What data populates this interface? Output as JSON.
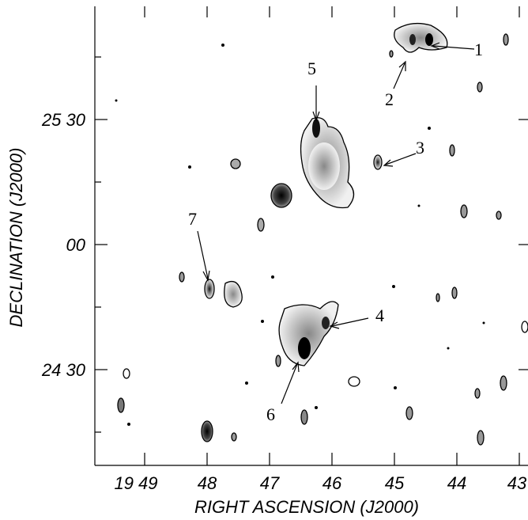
{
  "figure": {
    "y_axis_label": "DECLINATION (J2000)",
    "x_axis_label": "RIGHT ASCENSION (J2000)",
    "x_ticks": [
      "19 49",
      "48",
      "47",
      "46",
      "45",
      "44",
      "43"
    ],
    "y_ticks": [
      "25 30",
      "00",
      "24 30"
    ],
    "source_labels": [
      "1",
      "2",
      "3",
      "4",
      "5",
      "6",
      "7"
    ]
  }
}
